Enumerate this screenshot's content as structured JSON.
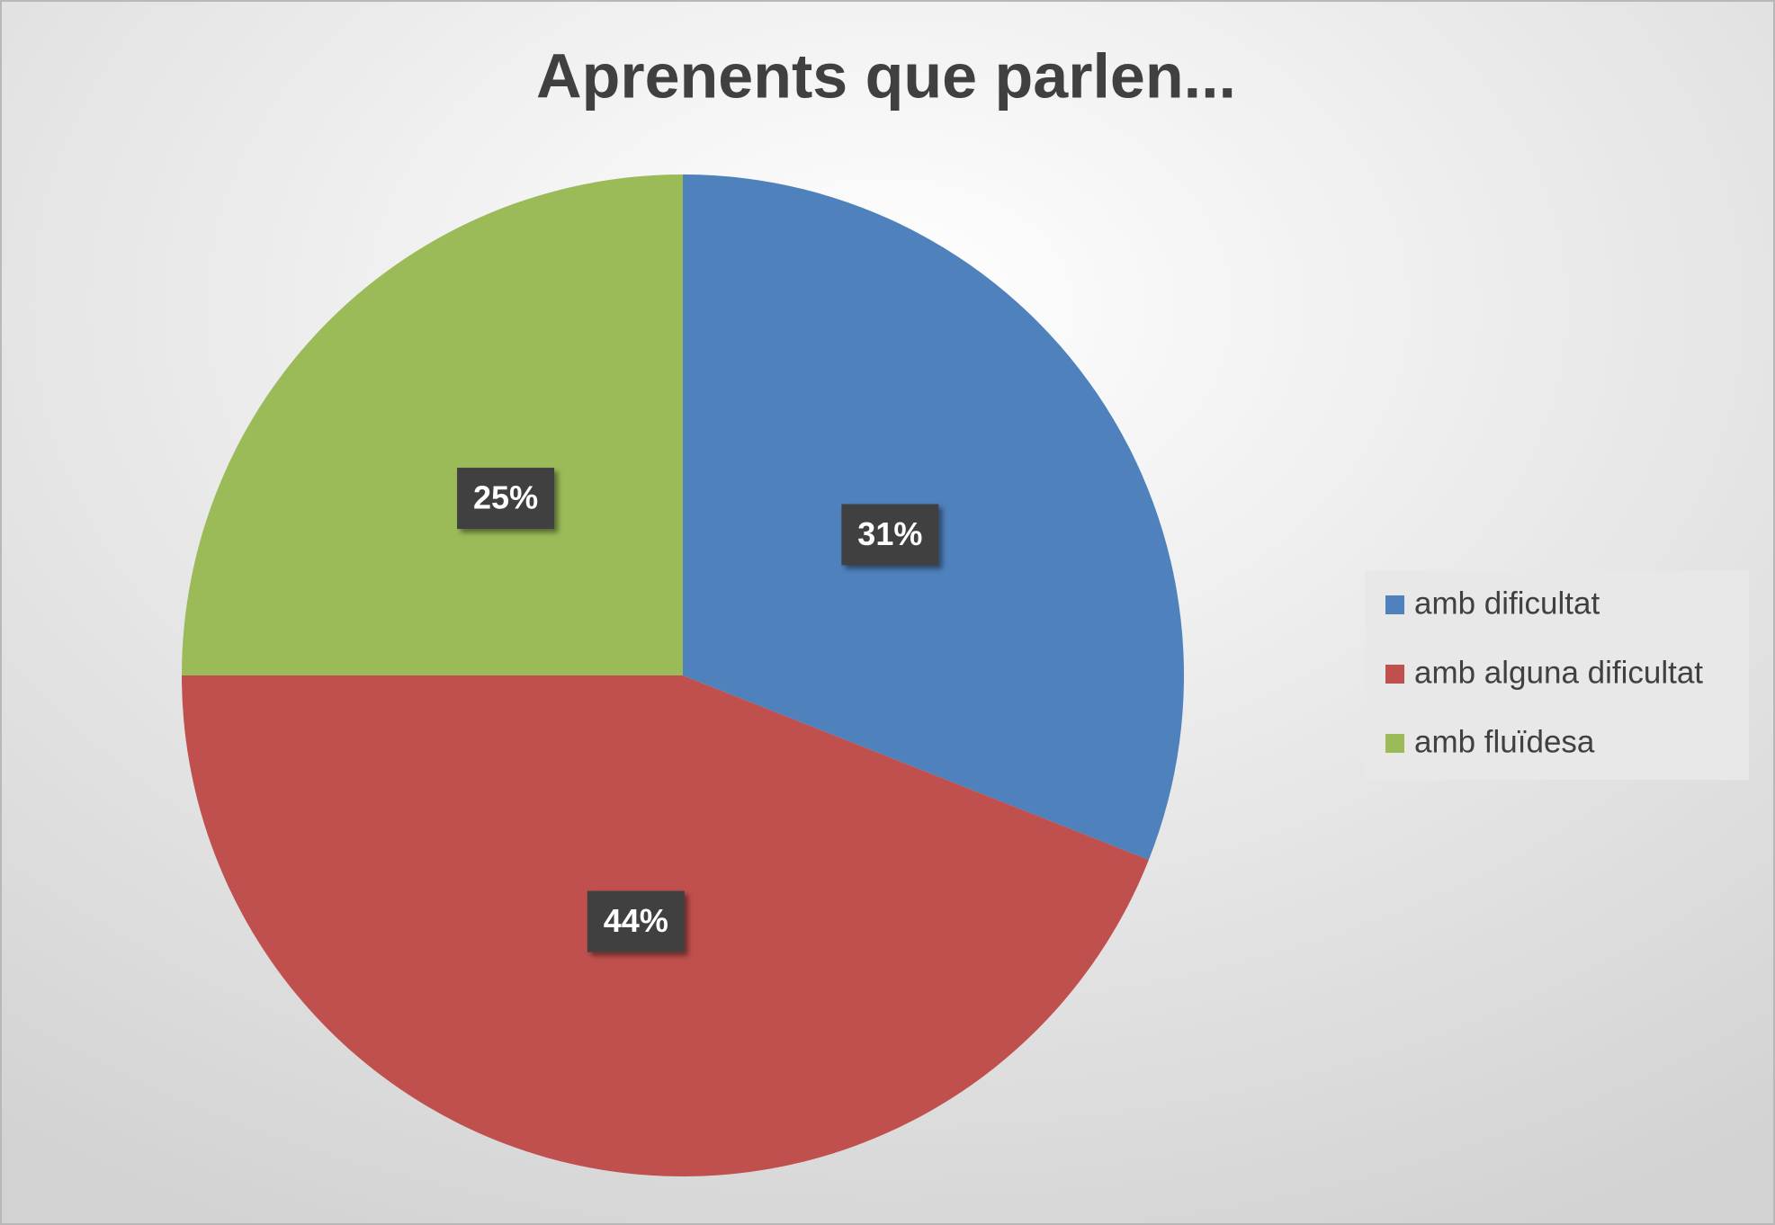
{
  "chart_data": {
    "type": "pie",
    "title": "Aprenents que parlen...",
    "categories": [
      "amb dificultat",
      "amb alguna dificultat",
      "amb fluïdesa"
    ],
    "values": [
      31,
      44,
      25
    ],
    "value_labels": [
      "31%",
      "44%",
      "25%"
    ],
    "colors": [
      "#4f81bd",
      "#c0504d",
      "#9bbb59"
    ],
    "legend": "right"
  }
}
